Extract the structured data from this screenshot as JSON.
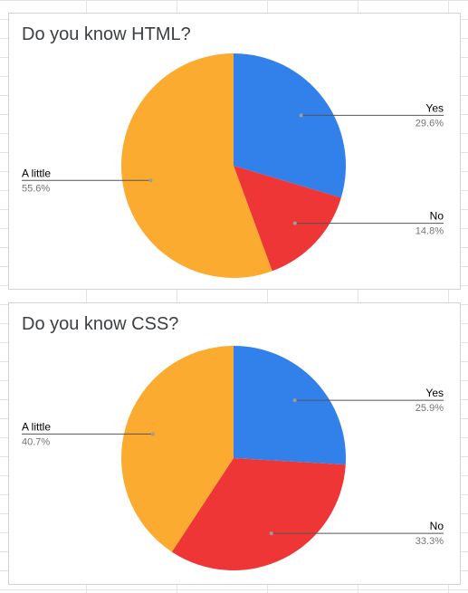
{
  "chart_data": [
    {
      "type": "pie",
      "title": "Do you know HTML?",
      "slices": [
        {
          "label": "Yes",
          "value": 29.6,
          "value_label": "29.6%",
          "color": "#3281ea"
        },
        {
          "label": "No",
          "value": 14.8,
          "value_label": "14.8%",
          "color": "#ef3636"
        },
        {
          "label": "A little",
          "value": 55.6,
          "value_label": "55.6%",
          "color": "#fbab2f"
        }
      ],
      "legend": "labeled-slices"
    },
    {
      "type": "pie",
      "title": "Do you know CSS?",
      "slices": [
        {
          "label": "Yes",
          "value": 25.9,
          "value_label": "25.9%",
          "color": "#3281ea"
        },
        {
          "label": "No",
          "value": 33.3,
          "value_label": "33.3%",
          "color": "#ef3636"
        },
        {
          "label": "A little",
          "value": 40.7,
          "value_label": "40.7%",
          "color": "#fbab2f"
        }
      ],
      "legend": "labeled-slices"
    }
  ]
}
